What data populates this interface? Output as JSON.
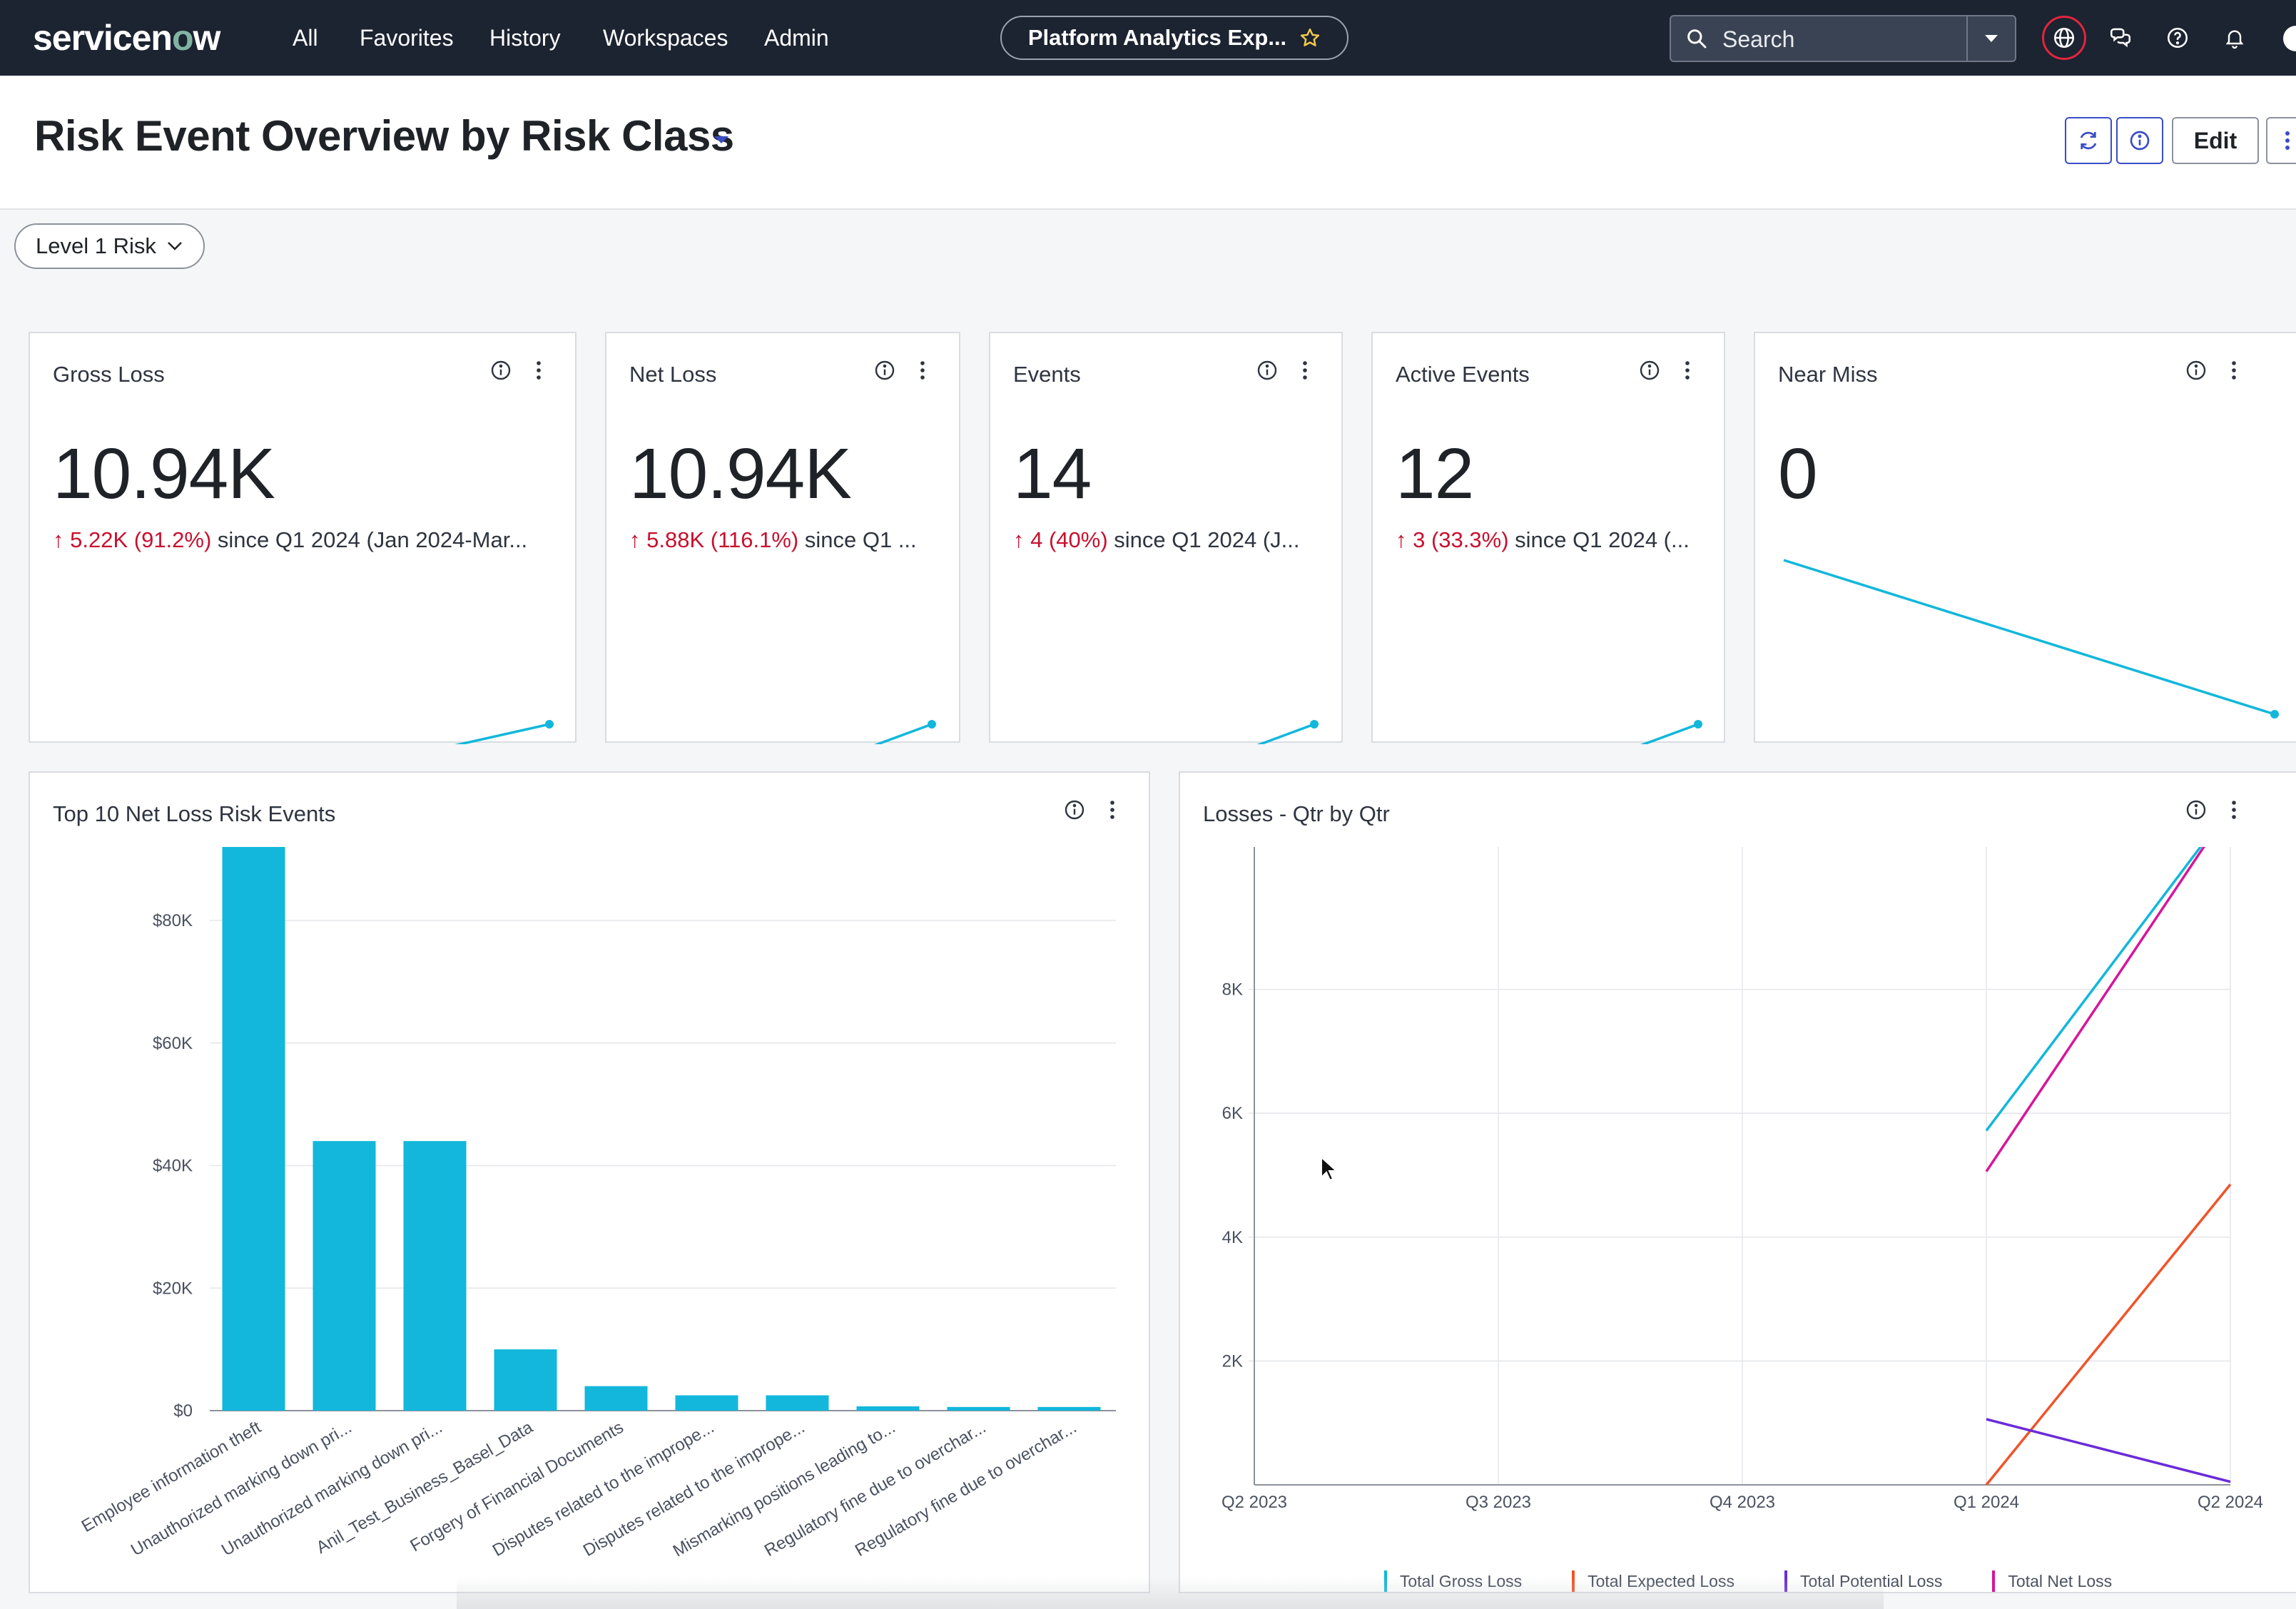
{
  "topbar": {
    "logo": "servicenow",
    "nav": [
      "All",
      "Favorites",
      "History",
      "Workspaces",
      "Admin"
    ],
    "pill_label": "Platform Analytics Exp...",
    "search_placeholder": "Search"
  },
  "header": {
    "title": "Risk Event Overview by Risk Class",
    "edit_label": "Edit"
  },
  "filter": {
    "label": "Level 1 Risk"
  },
  "kpis": [
    {
      "title": "Gross Loss",
      "value": "10.94K",
      "change": "5.22K (91.2%)",
      "since": "since Q1 2024 (Jan 2024-Mar...",
      "trend": [
        0,
        1
      ]
    },
    {
      "title": "Net Loss",
      "value": "10.94K",
      "change": "5.88K (116.1%)",
      "since": "since Q1 ...",
      "trend": [
        0,
        1
      ]
    },
    {
      "title": "Events",
      "value": "14",
      "change": "4 (40%)",
      "since": "since Q1 2024 (J...",
      "trend": [
        10,
        14
      ]
    },
    {
      "title": "Active Events",
      "value": "12",
      "change": "3 (33.3%)",
      "since": "since Q1 2024 (...",
      "trend": [
        9,
        12
      ]
    },
    {
      "title": "Near Miss",
      "value": "0",
      "change": "",
      "since": "",
      "trend": [
        1,
        0
      ]
    }
  ],
  "colors": {
    "accent": "#12b7db",
    "negative_change": "#c8102e",
    "gross": "#12b7db",
    "expected": "#f0542a",
    "potential": "#6a2bd9",
    "net": "#d6169a"
  },
  "charts": {
    "top10": {
      "title": "Top 10 Net Loss Risk Events",
      "chart_data": {
        "type": "bar",
        "categories": [
          "Employee information theft",
          "Unauthorized marking down pri...",
          "Unauthorized marking down pri...",
          "Anil_Test_Business_Basel_Data",
          "Forgery of Financial Documents",
          "Disputes related to the imprope...",
          "Disputes related to the imprope...",
          "Mismarking positions leading to...",
          "Regulatory fine due to overchar...",
          "Regulatory fine due to overchar..."
        ],
        "values": [
          92000,
          44000,
          44000,
          10000,
          4000,
          2500,
          2500,
          700,
          600,
          600
        ],
        "ylim": [
          0,
          92000
        ],
        "yticks": [
          0,
          20000,
          40000,
          60000,
          80000
        ],
        "ytick_labels": [
          "$0",
          "$20K",
          "$40K",
          "$60K",
          "$80K"
        ],
        "grid": true
      }
    },
    "losses": {
      "title": "Losses - Qtr by Qtr",
      "chart_data": {
        "type": "line",
        "x": [
          "Q2 2023",
          "Q3 2023",
          "Q4 2023",
          "Q1 2024",
          "Q2 2024"
        ],
        "ylim": [
          0,
          10300
        ],
        "yticks": [
          2000,
          4000,
          6000,
          8000
        ],
        "ytick_labels": [
          "2K",
          "4K",
          "6K",
          "8K"
        ],
        "series": [
          {
            "name": "Total Gross Loss",
            "values": [
              null,
              null,
              null,
              5720,
              10940
            ]
          },
          {
            "name": "Total Expected Loss",
            "values": [
              null,
              null,
              null,
              0,
              4850
            ]
          },
          {
            "name": "Total Potential Loss",
            "values": [
              null,
              null,
              null,
              1060,
              50
            ]
          },
          {
            "name": "Total Net Loss",
            "values": [
              null,
              null,
              null,
              5060,
              10940
            ]
          }
        ],
        "legend": "bottom",
        "grid": true
      }
    }
  }
}
